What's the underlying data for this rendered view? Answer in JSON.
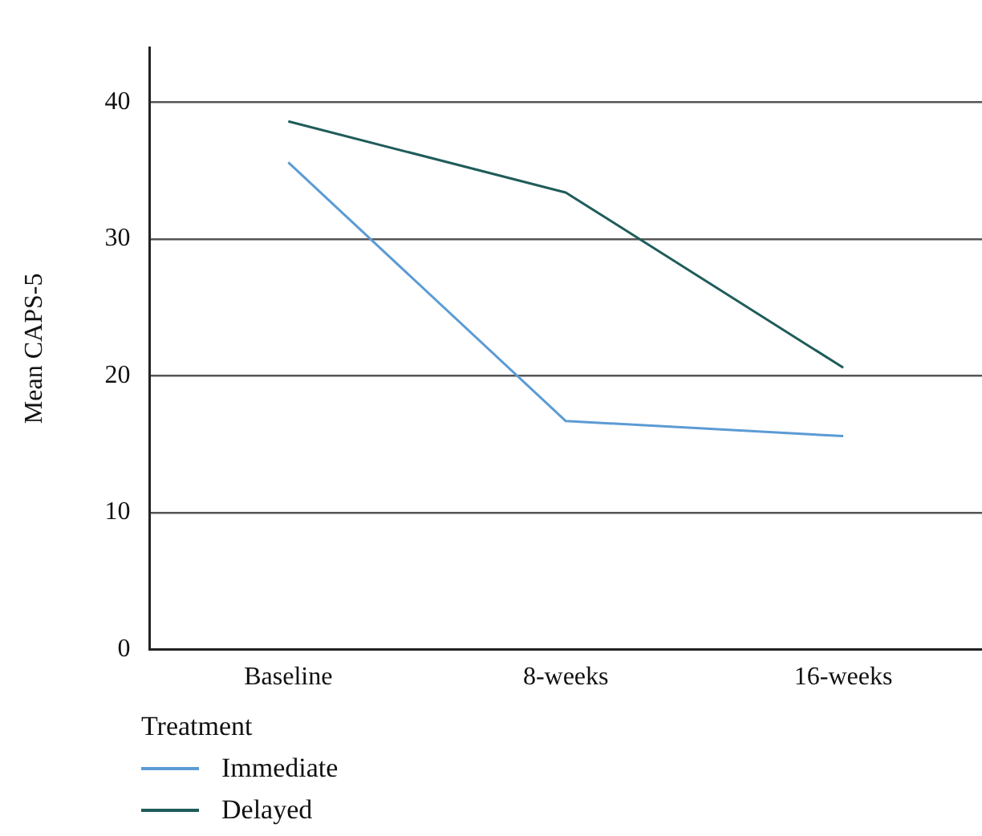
{
  "chart_data": {
    "type": "line",
    "ylabel": "Mean CAPS-5",
    "legend_title": "Treatment",
    "categories": [
      "Baseline",
      "8-weeks",
      "16-weeks"
    ],
    "series": [
      {
        "name": "Immediate",
        "color": "#5b9bd5",
        "values": [
          35.6,
          16.7,
          15.6
        ]
      },
      {
        "name": "Delayed",
        "color": "#1f5c5a",
        "values": [
          38.6,
          33.4,
          20.6
        ]
      }
    ],
    "ylim": [
      0,
      44
    ],
    "yticks": [
      0,
      10,
      20,
      30,
      40
    ],
    "grid": "y",
    "legend": "bottom left",
    "marker": "none",
    "line_style": "solid"
  }
}
